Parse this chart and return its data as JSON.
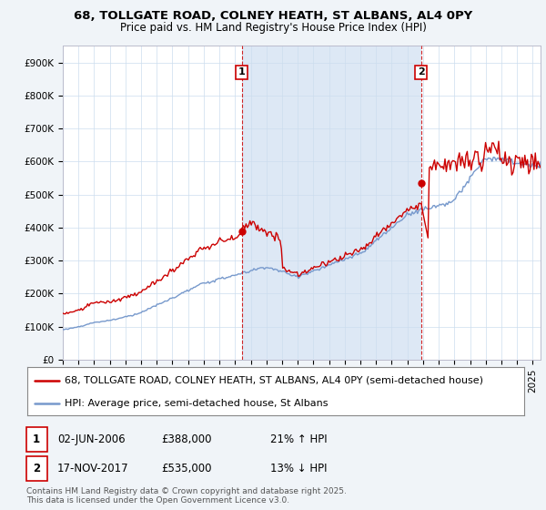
{
  "title_line1": "68, TOLLGATE ROAD, COLNEY HEATH, ST ALBANS, AL4 0PY",
  "title_line2": "Price paid vs. HM Land Registry's House Price Index (HPI)",
  "ylabel_ticks": [
    "£0",
    "£100K",
    "£200K",
    "£300K",
    "£400K",
    "£500K",
    "£600K",
    "£700K",
    "£800K",
    "£900K"
  ],
  "ytick_values": [
    0,
    100000,
    200000,
    300000,
    400000,
    500000,
    600000,
    700000,
    800000,
    900000
  ],
  "ylim": [
    0,
    950000
  ],
  "xlim_start": 1995.0,
  "xlim_end": 2025.5,
  "background_color": "#f0f4f8",
  "plot_bg_color": "#ffffff",
  "red_line_color": "#cc0000",
  "blue_line_color": "#7799cc",
  "shade_color": "#dde8f5",
  "dashed_line_color": "#cc0000",
  "marker1_x": 2006.42,
  "marker1_y": 388000,
  "marker1_label": "1",
  "marker2_x": 2017.88,
  "marker2_y": 535000,
  "marker2_label": "2",
  "legend_line1": "68, TOLLGATE ROAD, COLNEY HEATH, ST ALBANS, AL4 0PY (semi-detached house)",
  "legend_line2": "HPI: Average price, semi-detached house, St Albans",
  "annotation1_num": "1",
  "annotation1_date": "02-JUN-2006",
  "annotation1_price": "£388,000",
  "annotation1_hpi": "21% ↑ HPI",
  "annotation2_num": "2",
  "annotation2_date": "17-NOV-2017",
  "annotation2_price": "£535,000",
  "annotation2_hpi": "13% ↓ HPI",
  "footer": "Contains HM Land Registry data © Crown copyright and database right 2025.\nThis data is licensed under the Open Government Licence v3.0.",
  "title_fontsize": 9.5,
  "subtitle_fontsize": 8.5,
  "tick_fontsize": 7.5,
  "legend_fontsize": 8,
  "annotation_fontsize": 8.5
}
